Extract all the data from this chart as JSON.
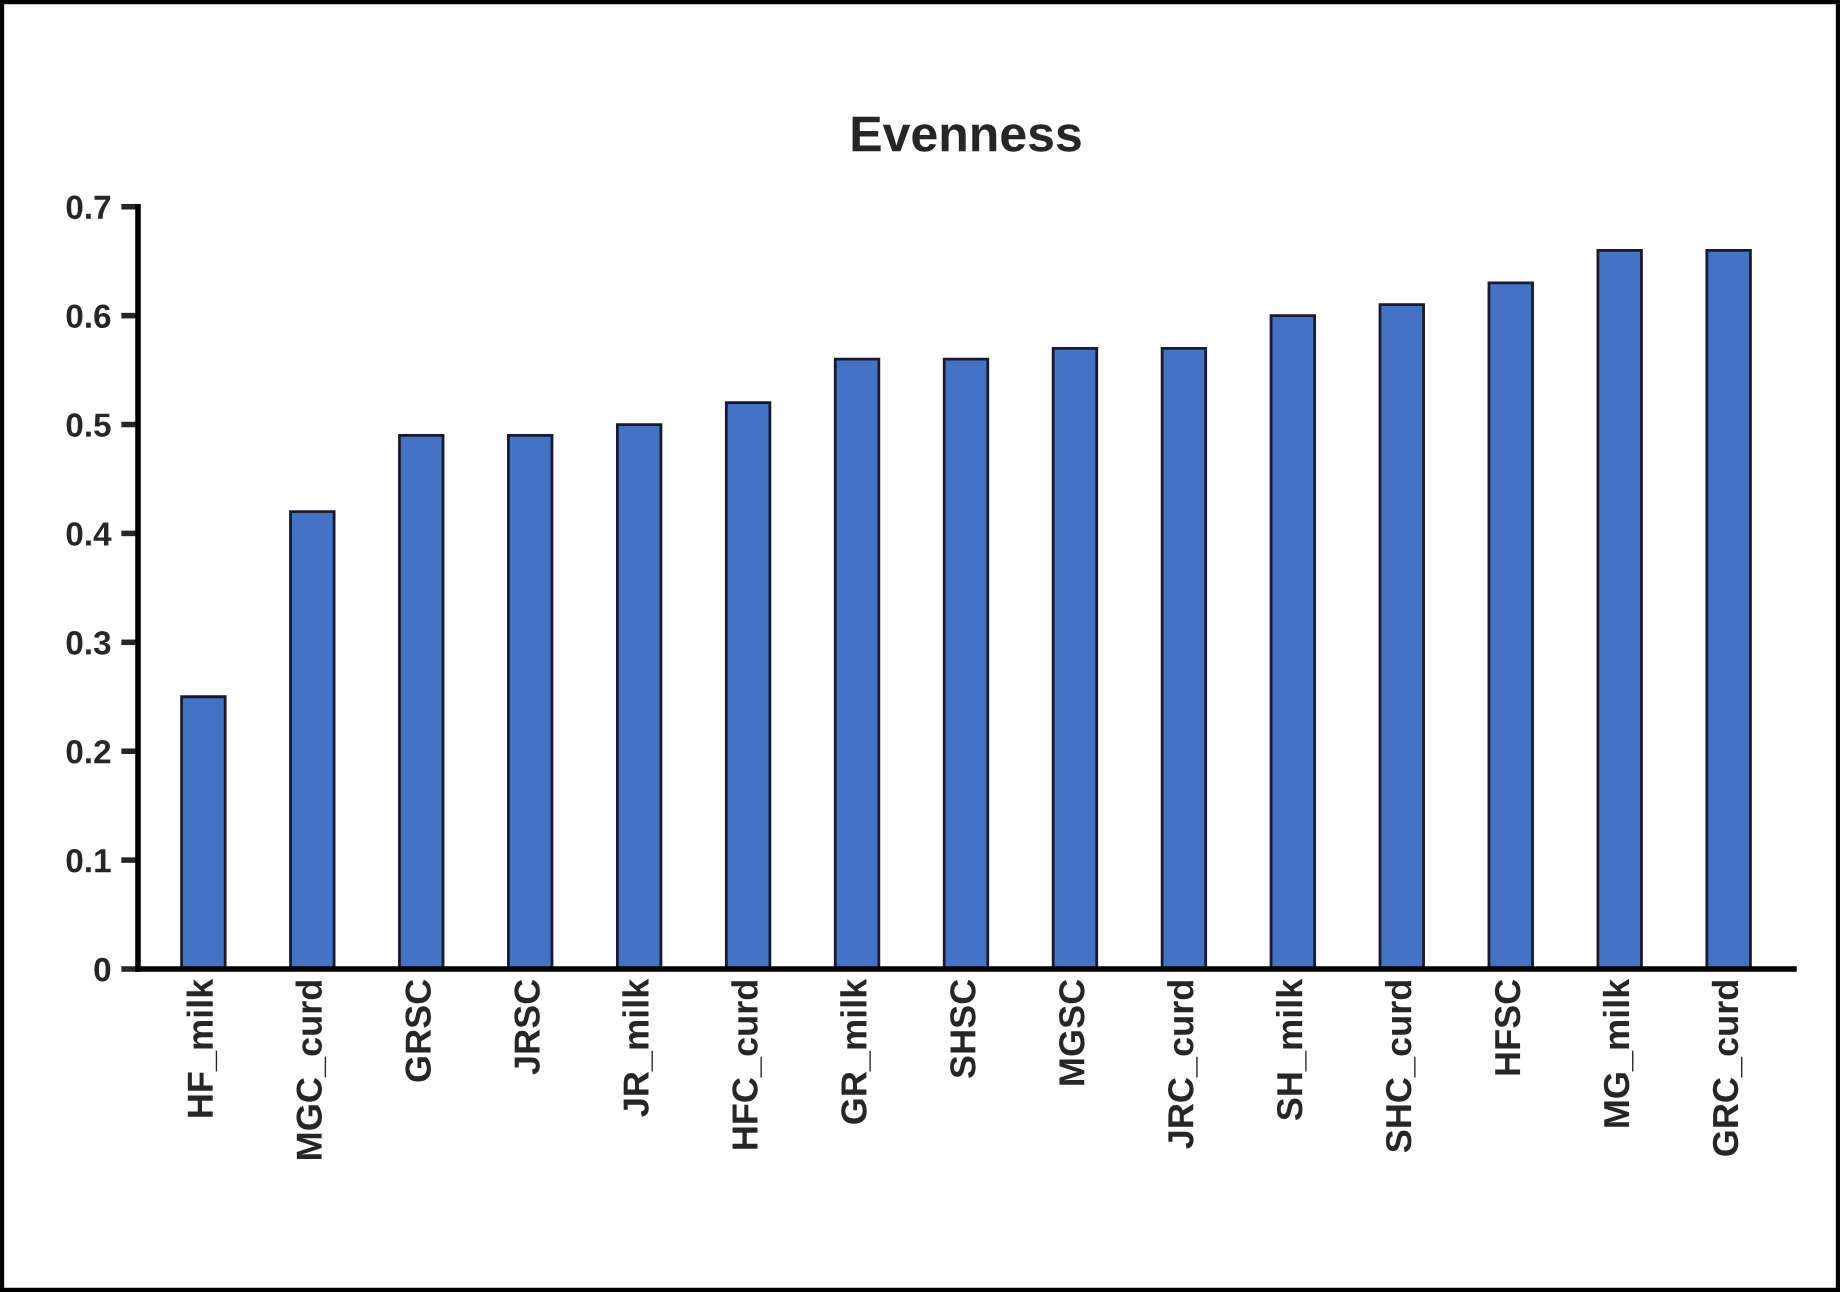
{
  "chart_data": {
    "type": "bar",
    "title": "Evenness",
    "categories": [
      "HF_milk",
      "MGC_curd",
      "GRSC",
      "JRSC",
      "JR_milk",
      "HFC_curd",
      "GR_milk",
      "SHSC",
      "MGSC",
      "JRC_curd",
      "SH_milk",
      "SHC_curd",
      "HFSC",
      "MG_milk",
      "GRC_curd"
    ],
    "values": [
      0.25,
      0.42,
      0.49,
      0.49,
      0.5,
      0.52,
      0.56,
      0.56,
      0.57,
      0.57,
      0.6,
      0.61,
      0.63,
      0.66,
      0.66
    ],
    "color": "#4472c4",
    "ylim": [
      0,
      0.7
    ],
    "yticks": [
      {
        "value": 0,
        "label": "0"
      },
      0.1,
      0.2,
      0.3,
      0.4,
      0.5,
      0.6,
      0.7
    ],
    "grid": false
  }
}
